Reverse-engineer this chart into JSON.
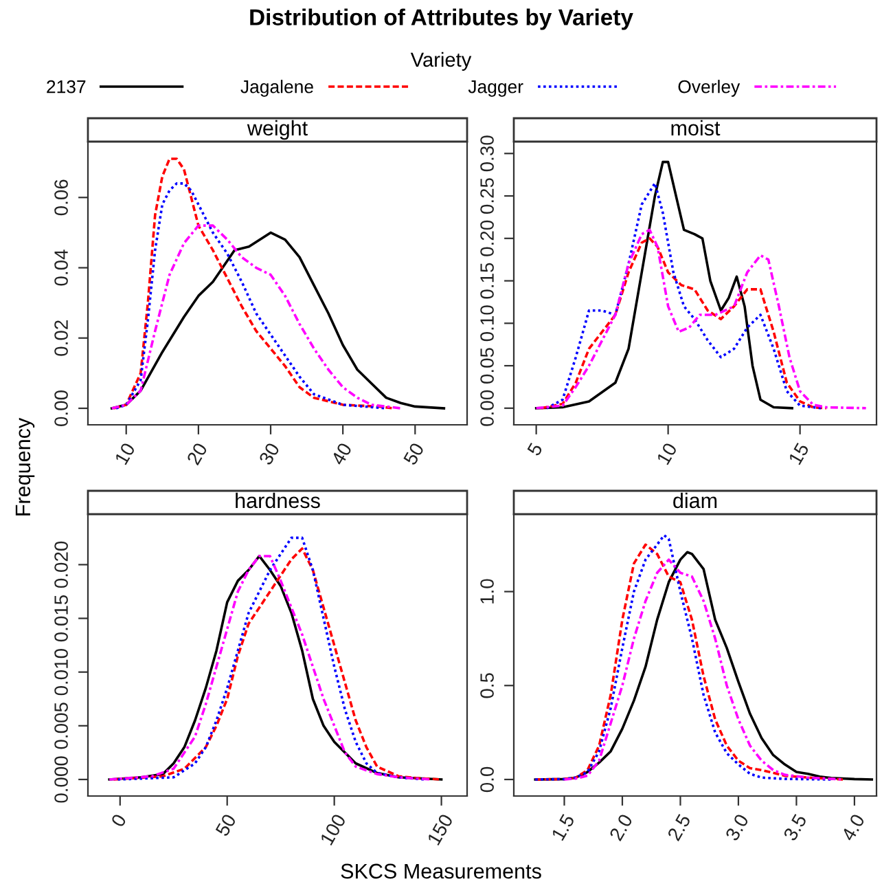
{
  "chart_data": [
    {
      "type": "line",
      "title": "weight",
      "annotations": [
        "Distribution of Attributes by Variety"
      ],
      "xlabel": "SKCS Measurements",
      "ylabel": "Frequency",
      "legend_title": "Variety",
      "legend": "top",
      "grid": false,
      "xlim": [
        4.7,
        57.2
      ],
      "ylim": [
        -0.0047,
        0.0759
      ],
      "xticks": [
        10,
        20,
        30,
        40,
        50
      ],
      "yticks": [
        {
          "value": 0,
          "label": "0.00"
        },
        {
          "value": 0.02,
          "label": "0.02"
        },
        {
          "value": 0.04,
          "label": "0.04"
        },
        {
          "value": 0.06,
          "label": "0.06"
        }
      ],
      "series": [
        {
          "name": "2137",
          "color": "#000000",
          "line_style": "solid",
          "x": [
            8,
            10,
            12,
            15,
            18,
            20,
            22,
            25,
            27,
            30,
            32,
            34,
            36,
            38,
            40,
            42,
            44,
            46,
            48,
            50,
            54
          ],
          "values": [
            0,
            0.001,
            0.005,
            0.016,
            0.026,
            0.032,
            0.036,
            0.045,
            0.046,
            0.05,
            0.048,
            0.043,
            0.035,
            0.027,
            0.018,
            0.011,
            0.007,
            0.003,
            0.0015,
            0.0005,
            0
          ]
        },
        {
          "name": "Jagalene",
          "color": "#ff0000",
          "line_style": "dashed",
          "x": [
            8.3,
            10,
            12,
            13,
            14,
            15,
            16,
            17,
            18,
            19,
            20,
            22,
            24,
            26,
            28,
            30,
            32,
            34,
            36,
            40,
            45,
            47
          ],
          "values": [
            0,
            0.001,
            0.01,
            0.03,
            0.055,
            0.066,
            0.071,
            0.071,
            0.068,
            0.06,
            0.052,
            0.045,
            0.037,
            0.029,
            0.022,
            0.017,
            0.012,
            0.006,
            0.003,
            0.001,
            0.0005,
            0
          ]
        },
        {
          "name": "Jagger",
          "color": "#0000ff",
          "line_style": "dotted",
          "x": [
            8.6,
            10,
            12,
            13,
            14,
            15,
            16,
            17,
            18,
            19,
            20,
            22,
            24,
            26,
            28,
            30,
            32,
            34,
            36,
            40,
            46
          ],
          "values": [
            0,
            0.001,
            0.008,
            0.025,
            0.045,
            0.058,
            0.062,
            0.064,
            0.064,
            0.062,
            0.058,
            0.05,
            0.044,
            0.036,
            0.027,
            0.021,
            0.015,
            0.009,
            0.004,
            0.001,
            0
          ]
        },
        {
          "name": "Overley",
          "color": "#ff00ff",
          "line_style": "dashdot",
          "x": [
            8,
            10,
            12,
            14,
            16,
            18,
            20,
            22,
            24,
            26,
            28,
            30,
            32,
            34,
            36,
            38,
            40,
            42,
            44,
            48
          ],
          "values": [
            0,
            0.001,
            0.005,
            0.022,
            0.038,
            0.047,
            0.052,
            0.052,
            0.048,
            0.043,
            0.04,
            0.038,
            0.032,
            0.024,
            0.017,
            0.011,
            0.006,
            0.003,
            0.001,
            0
          ]
        }
      ]
    },
    {
      "type": "line",
      "title": "moist",
      "grid": false,
      "xlim": [
        4.15,
        17.9
      ],
      "ylim": [
        -0.0196,
        0.314
      ],
      "xticks": [
        5,
        10,
        15
      ],
      "yticks": [
        {
          "value": 0,
          "label": "0.00"
        },
        {
          "value": 0.05,
          "label": "0.05"
        },
        {
          "value": 0.1,
          "label": "0.10"
        },
        {
          "value": 0.15,
          "label": "0.15"
        },
        {
          "value": 0.2,
          "label": "0.20"
        },
        {
          "value": 0.25,
          "label": "0.25"
        },
        {
          "value": 0.3,
          "label": "0.30"
        }
      ],
      "series": [
        {
          "color": "#000000",
          "line_style": "solid",
          "x": [
            5,
            6,
            7,
            8,
            8.5,
            9,
            9.5,
            9.8,
            10,
            10.3,
            10.6,
            11,
            11.3,
            11.6,
            12,
            12.3,
            12.6,
            12.9,
            13.2,
            13.5,
            14,
            14.7
          ],
          "values": [
            0,
            0.001,
            0.008,
            0.03,
            0.07,
            0.16,
            0.25,
            0.29,
            0.29,
            0.25,
            0.21,
            0.205,
            0.2,
            0.15,
            0.115,
            0.13,
            0.155,
            0.12,
            0.05,
            0.01,
            0.001,
            0
          ]
        },
        {
          "color": "#ff0000",
          "line_style": "dashed",
          "x": [
            5.2,
            6,
            6.5,
            7,
            7.5,
            8,
            8.5,
            9,
            9.3,
            9.6,
            10,
            10.5,
            11,
            11.5,
            12,
            12.5,
            13,
            13.5,
            14,
            14.5,
            15,
            15.5,
            16
          ],
          "values": [
            0,
            0.005,
            0.03,
            0.07,
            0.09,
            0.11,
            0.16,
            0.195,
            0.2,
            0.19,
            0.16,
            0.145,
            0.14,
            0.115,
            0.105,
            0.12,
            0.14,
            0.14,
            0.09,
            0.03,
            0.008,
            0.001,
            0
          ]
        },
        {
          "color": "#0000ff",
          "line_style": "dotted",
          "x": [
            5.4,
            6,
            6.5,
            7,
            7.5,
            8,
            8.5,
            9,
            9.5,
            9.8,
            10.2,
            10.6,
            11,
            11.5,
            12,
            12.5,
            13,
            13.5,
            14,
            14.5,
            15,
            15.8
          ],
          "values": [
            0,
            0.01,
            0.06,
            0.115,
            0.115,
            0.11,
            0.17,
            0.24,
            0.265,
            0.23,
            0.16,
            0.12,
            0.105,
            0.08,
            0.06,
            0.07,
            0.095,
            0.11,
            0.07,
            0.02,
            0.003,
            0
          ]
        },
        {
          "color": "#ff00ff",
          "line_style": "dashdot",
          "x": [
            5,
            6,
            6.5,
            7,
            7.5,
            8,
            8.5,
            9,
            9.3,
            9.6,
            10,
            10.4,
            10.8,
            11.2,
            11.8,
            12.5,
            13,
            13.5,
            13.8,
            14.2,
            14.6,
            15,
            15.5,
            16,
            17.5
          ],
          "values": [
            0,
            0.003,
            0.025,
            0.05,
            0.08,
            0.11,
            0.17,
            0.205,
            0.21,
            0.19,
            0.12,
            0.09,
            0.095,
            0.11,
            0.11,
            0.12,
            0.16,
            0.18,
            0.175,
            0.12,
            0.06,
            0.02,
            0.004,
            0.001,
            0
          ]
        }
      ]
    },
    {
      "type": "line",
      "title": "hardness",
      "grid": false,
      "xlim": [
        -15,
        162
      ],
      "ylim": [
        -0.00154,
        0.0247
      ],
      "xticks": [
        0,
        50,
        100,
        150
      ],
      "yticks": [
        {
          "value": 0,
          "label": "0.000"
        },
        {
          "value": 0.005,
          "label": "0.005"
        },
        {
          "value": 0.01,
          "label": "0.010"
        },
        {
          "value": 0.015,
          "label": "0.015"
        },
        {
          "value": 0.02,
          "label": "0.020"
        }
      ],
      "series": [
        {
          "color": "#000000",
          "line_style": "solid",
          "x": [
            -5,
            10,
            20,
            25,
            30,
            35,
            40,
            45,
            50,
            55,
            60,
            65,
            70,
            75,
            80,
            85,
            90,
            95,
            100,
            110,
            120,
            130,
            150
          ],
          "values": [
            0,
            0.0002,
            0.0005,
            0.0015,
            0.003,
            0.0055,
            0.0085,
            0.012,
            0.0165,
            0.0185,
            0.0195,
            0.0208,
            0.0195,
            0.018,
            0.0155,
            0.012,
            0.0075,
            0.005,
            0.0035,
            0.0015,
            0.0006,
            0.0002,
            0
          ]
        },
        {
          "color": "#ff0000",
          "line_style": "dashed",
          "x": [
            -3,
            20,
            30,
            40,
            45,
            50,
            55,
            60,
            65,
            70,
            75,
            80,
            85,
            90,
            95,
            100,
            105,
            110,
            115,
            120,
            130,
            140,
            150
          ],
          "values": [
            0,
            0.0003,
            0.001,
            0.003,
            0.005,
            0.0075,
            0.0115,
            0.0145,
            0.016,
            0.0175,
            0.019,
            0.0205,
            0.0215,
            0.0195,
            0.016,
            0.0125,
            0.009,
            0.0055,
            0.003,
            0.0012,
            0.0003,
            0.0001,
            0
          ]
        },
        {
          "color": "#0000ff",
          "line_style": "dotted",
          "x": [
            -1,
            25,
            35,
            40,
            45,
            50,
            55,
            60,
            65,
            70,
            75,
            80,
            85,
            90,
            95,
            100,
            105,
            110,
            115,
            120,
            130,
            142
          ],
          "values": [
            0,
            0.0002,
            0.0015,
            0.003,
            0.0055,
            0.0085,
            0.012,
            0.0155,
            0.0175,
            0.0195,
            0.021,
            0.0225,
            0.0225,
            0.0195,
            0.015,
            0.0105,
            0.0065,
            0.0035,
            0.0015,
            0.0006,
            0.0002,
            0
          ]
        },
        {
          "color": "#ff00ff",
          "line_style": "dashdot",
          "x": [
            -5,
            15,
            25,
            35,
            40,
            45,
            50,
            55,
            60,
            65,
            70,
            75,
            80,
            85,
            90,
            95,
            100,
            105,
            110,
            120,
            130,
            145
          ],
          "values": [
            0,
            0.0003,
            0.001,
            0.004,
            0.007,
            0.0105,
            0.014,
            0.0175,
            0.0195,
            0.0208,
            0.0208,
            0.0185,
            0.016,
            0.0135,
            0.0105,
            0.0075,
            0.005,
            0.0025,
            0.0012,
            0.0005,
            0.0002,
            0
          ]
        }
      ]
    },
    {
      "type": "line",
      "title": "diam",
      "grid": false,
      "xlim": [
        1.065,
        4.19
      ],
      "ylim": [
        -0.088,
        1.412
      ],
      "xticks": [
        {
          "value": 1.5,
          "label": "1.5"
        },
        {
          "value": 2,
          "label": "2.0"
        },
        {
          "value": 2.5,
          "label": "2.5"
        },
        {
          "value": 3,
          "label": "3.0"
        },
        {
          "value": 3.5,
          "label": "3.5"
        },
        {
          "value": 4,
          "label": "4.0"
        }
      ],
      "yticks": [
        {
          "value": 0,
          "label": "0.0"
        },
        {
          "value": 0.5,
          "label": "0.5"
        },
        {
          "value": 1,
          "label": "1.0"
        }
      ],
      "series": [
        {
          "color": "#000000",
          "line_style": "solid",
          "x": [
            1.25,
            1.5,
            1.6,
            1.7,
            1.8,
            1.9,
            2.0,
            2.1,
            2.2,
            2.3,
            2.4,
            2.5,
            2.56,
            2.6,
            2.7,
            2.8,
            2.9,
            3.0,
            3.1,
            3.2,
            3.3,
            3.4,
            3.5,
            3.6,
            3.7,
            3.8,
            4.0,
            4.15
          ],
          "values": [
            0,
            0.002,
            0.01,
            0.04,
            0.09,
            0.15,
            0.27,
            0.42,
            0.6,
            0.85,
            1.05,
            1.17,
            1.21,
            1.2,
            1.12,
            0.85,
            0.7,
            0.52,
            0.35,
            0.22,
            0.13,
            0.08,
            0.04,
            0.03,
            0.015,
            0.008,
            0.002,
            0
          ]
        },
        {
          "color": "#ff0000",
          "line_style": "dashed",
          "x": [
            1.25,
            1.5,
            1.6,
            1.7,
            1.8,
            1.9,
            2.0,
            2.1,
            2.2,
            2.3,
            2.4,
            2.5,
            2.6,
            2.7,
            2.8,
            2.9,
            3.0,
            3.1,
            3.2,
            3.4,
            3.6,
            3.9
          ],
          "values": [
            0,
            0.002,
            0.01,
            0.05,
            0.18,
            0.45,
            0.85,
            1.15,
            1.25,
            1.2,
            1.08,
            1.05,
            0.85,
            0.55,
            0.32,
            0.18,
            0.1,
            0.06,
            0.05,
            0.02,
            0.01,
            0
          ]
        },
        {
          "color": "#0000ff",
          "line_style": "dotted",
          "x": [
            1.25,
            1.5,
            1.6,
            1.7,
            1.8,
            1.9,
            2.0,
            2.1,
            2.2,
            2.3,
            2.36,
            2.4,
            2.5,
            2.6,
            2.7,
            2.8,
            2.9,
            3.0,
            3.1,
            3.2,
            3.4,
            3.8
          ],
          "values": [
            0,
            0.002,
            0.01,
            0.04,
            0.15,
            0.38,
            0.7,
            1.0,
            1.17,
            1.25,
            1.3,
            1.28,
            1.0,
            0.75,
            0.45,
            0.25,
            0.14,
            0.08,
            0.03,
            0.01,
            0.003,
            0
          ]
        },
        {
          "color": "#ff00ff",
          "line_style": "dashdot",
          "x": [
            1.5,
            1.6,
            1.7,
            1.8,
            1.9,
            2.0,
            2.1,
            2.2,
            2.3,
            2.4,
            2.5,
            2.6,
            2.7,
            2.8,
            2.9,
            3.0,
            3.1,
            3.2,
            3.3,
            3.4,
            3.6,
            3.9
          ],
          "values": [
            0,
            0.005,
            0.02,
            0.1,
            0.3,
            0.5,
            0.75,
            0.95,
            1.1,
            1.17,
            1.1,
            1.08,
            0.95,
            0.75,
            0.5,
            0.32,
            0.18,
            0.1,
            0.05,
            0.025,
            0.01,
            0
          ]
        }
      ]
    }
  ]
}
